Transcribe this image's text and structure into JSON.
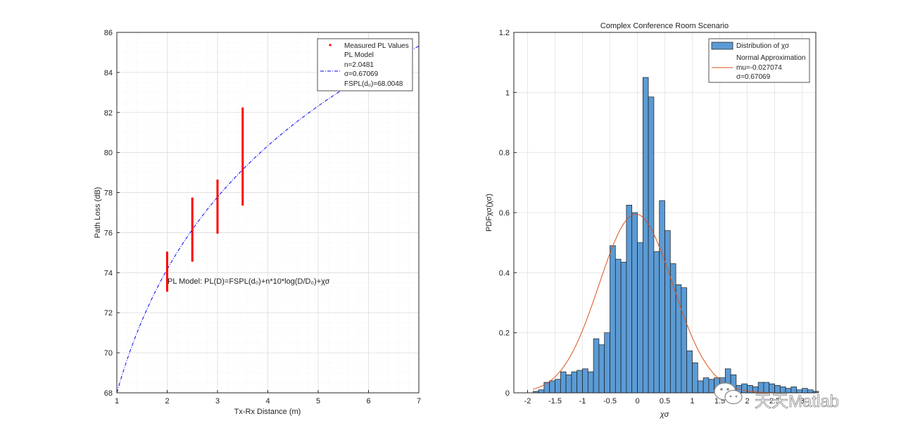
{
  "chart_data": [
    {
      "type": "scatter",
      "xlabel": "Tx-Rx Distance (m)",
      "ylabel": "Path Loss (dB)",
      "xlim": [
        1,
        7
      ],
      "ylim": [
        68,
        86
      ],
      "xticks": [
        "1",
        "2",
        "3",
        "4",
        "5",
        "6",
        "7"
      ],
      "yticks": [
        "68",
        "70",
        "72",
        "74",
        "76",
        "78",
        "80",
        "82",
        "84",
        "86"
      ],
      "grid": true,
      "model_equation": "PL Model: PL(D)=FSPL(d₀)+n*10*log(D/D₀)+χσ",
      "legend": {
        "position": "top-right",
        "entries": [
          "Measured PL Values",
          "PL Model",
          "n=2.0481",
          "σ=0.67069",
          "FSPL(d₀)=68.0048"
        ]
      },
      "series": [
        {
          "name": "Measured PL Values",
          "marker": "dot",
          "color": "#ff0000",
          "groups": [
            {
              "x": 2.0,
              "ymin": 73.1,
              "ymax": 75.0
            },
            {
              "x": 2.5,
              "ymin": 74.6,
              "ymax": 77.7
            },
            {
              "x": 3.0,
              "ymin": 76.0,
              "ymax": 78.6
            },
            {
              "x": 3.5,
              "ymin": 77.4,
              "ymax": 82.2
            }
          ]
        },
        {
          "name": "PL Model",
          "style": "dash-dot",
          "color": "#0000ff",
          "n": 2.0481,
          "fspl_d0": 68.0048,
          "d0": 1
        }
      ]
    },
    {
      "type": "bar",
      "title": "Complex Conference Room Scenario",
      "xlabel": "χσ",
      "ylabel": "PDFχσ(χσ)",
      "xlim": [
        -2.25,
        3.25
      ],
      "ylim": [
        0,
        1.2
      ],
      "xticks": [
        "-2",
        "-1.5",
        "-1",
        "-0.5",
        "0",
        "0.5",
        "1",
        "1.5",
        "2",
        "2.5",
        "3"
      ],
      "yticks": [
        "0",
        "0.2",
        "0.4",
        "0.6",
        "0.8",
        "1",
        "1.2"
      ],
      "grid": true,
      "legend": {
        "position": "top-right",
        "entries": [
          "Distribution of χσ",
          "Normal Approximation",
          "mu=-0.027074",
          "σ=0.67069"
        ]
      },
      "histogram": {
        "name": "Distribution of χσ",
        "color": "#5b9bd5",
        "bin_start": -1.9,
        "bin_width": 0.1,
        "values": [
          0.005,
          0.01,
          0.035,
          0.04,
          0.045,
          0.07,
          0.06,
          0.07,
          0.075,
          0.08,
          0.07,
          0.18,
          0.16,
          0.2,
          0.49,
          0.445,
          0.435,
          0.625,
          0.6,
          0.5,
          1.05,
          0.985,
          0.47,
          0.64,
          0.54,
          0.43,
          0.36,
          0.35,
          0.14,
          0.1,
          0.04,
          0.05,
          0.045,
          0.05,
          0.05,
          0.08,
          0.06,
          0.025,
          0.03,
          0.025,
          0.02,
          0.035,
          0.035,
          0.03,
          0.025,
          0.02,
          0.015,
          0.02,
          0.01,
          0.015,
          0.01,
          0.005
        ]
      },
      "normal_curve": {
        "name": "Normal Approximation",
        "mu": -0.027074,
        "sigma": 0.67069,
        "color": "#d95319"
      }
    }
  ],
  "watermark": {
    "text": "天天Matlab",
    "icon": "wechat-icon"
  }
}
